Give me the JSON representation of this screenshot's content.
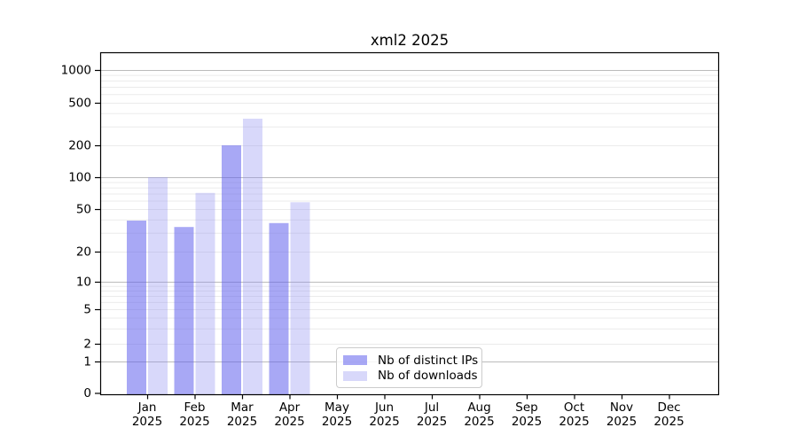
{
  "chart_data": {
    "type": "bar",
    "title": "xml2 2025",
    "categories": [
      "Jan",
      "Feb",
      "Mar",
      "Apr",
      "May",
      "Jun",
      "Jul",
      "Aug",
      "Sep",
      "Oct",
      "Nov",
      "Dec"
    ],
    "category_year": "2025",
    "series": [
      {
        "name": "Nb of distinct IPs",
        "color": "rgba(97,97,237,0.55)",
        "values": [
          39,
          34,
          200,
          37,
          0,
          0,
          0,
          0,
          0,
          0,
          0,
          0
        ]
      },
      {
        "name": "Nb of downloads",
        "color": "rgba(144,144,241,0.35)",
        "values": [
          100,
          71,
          355,
          58,
          0,
          0,
          0,
          0,
          0,
          0,
          0,
          0
        ]
      }
    ],
    "y_axis": {
      "scale": "symlog",
      "ticks": [
        0,
        1,
        2,
        5,
        10,
        20,
        50,
        100,
        200,
        500,
        1000
      ],
      "ylim_top_approx": 1500
    },
    "x_axis": {
      "tick_label_line2": "2025"
    },
    "grid": true,
    "legend_position": "lower-center",
    "colors": {
      "major_grid": "#bbbbbb",
      "minor_grid": "#ebebeb",
      "spine": "#000000",
      "text": "#000000",
      "legend_border": "#cccccc"
    }
  }
}
